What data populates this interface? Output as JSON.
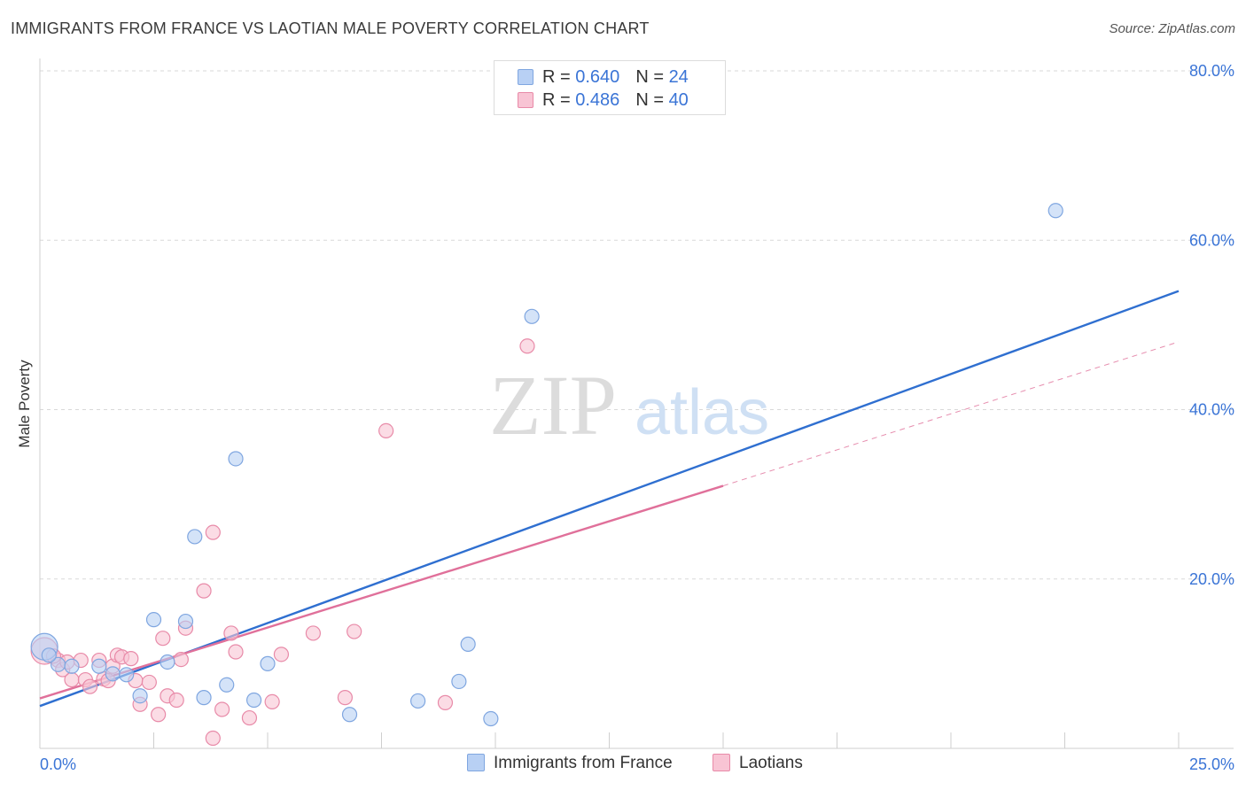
{
  "title": "IMMIGRANTS FROM FRANCE VS LAOTIAN MALE POVERTY CORRELATION CHART",
  "source": "Source: ZipAtlas.com",
  "watermark": {
    "zip": "ZIP",
    "atlas": "atlas"
  },
  "legend_top": {
    "rows": [
      {
        "r_label": "R =",
        "r_value": "0.640",
        "n_label": "N =",
        "n_value": "24"
      },
      {
        "r_label": "R =",
        "r_value": "0.486",
        "n_label": "N =",
        "n_value": "40"
      }
    ]
  },
  "colors": {
    "blue_fill": "#b8d0f4",
    "blue_stroke": "#7fa6e0",
    "blue_line": "#2f6fd0",
    "pink_fill": "#f8c4d4",
    "pink_stroke": "#e88aa8",
    "pink_line": "#e0709a",
    "axis_label": "#3a74d6",
    "grid": "#d9d9d9"
  },
  "chart_data": {
    "type": "scatter",
    "title": "IMMIGRANTS FROM FRANCE VS LAOTIAN MALE POVERTY CORRELATION CHART",
    "xlabel": "",
    "ylabel": "Male Poverty",
    "xlim": [
      0,
      25
    ],
    "ylim": [
      0,
      80
    ],
    "x_tick_labels": [
      "0.0%",
      "25.0%"
    ],
    "y_ticks": [
      20,
      40,
      60,
      80
    ],
    "y_tick_labels": [
      "20.0%",
      "40.0%",
      "60.0%",
      "80.0%"
    ],
    "grid": true,
    "legend_position": "bottom",
    "series": [
      {
        "name": "Immigrants from France",
        "color": "#b8d0f4",
        "r": 0.64,
        "n": 24,
        "points": [
          [
            0.1,
            12.0
          ],
          [
            0.4,
            9.9
          ],
          [
            0.7,
            9.7
          ],
          [
            1.3,
            9.7
          ],
          [
            1.6,
            8.8
          ],
          [
            1.9,
            8.7
          ],
          [
            2.2,
            6.2
          ],
          [
            2.5,
            15.2
          ],
          [
            2.8,
            10.2
          ],
          [
            3.2,
            15.0
          ],
          [
            3.4,
            25.0
          ],
          [
            3.6,
            6.0
          ],
          [
            4.1,
            7.5
          ],
          [
            4.3,
            34.2
          ],
          [
            4.7,
            5.7
          ],
          [
            5.0,
            10.0
          ],
          [
            6.8,
            4.0
          ],
          [
            8.3,
            5.6
          ],
          [
            9.2,
            7.9
          ],
          [
            9.4,
            12.3
          ],
          [
            9.9,
            3.5
          ],
          [
            10.8,
            51.0
          ],
          [
            22.3,
            63.5
          ],
          [
            0.2,
            11.0
          ]
        ],
        "trend": {
          "x": [
            0,
            25
          ],
          "y": [
            5.0,
            54.0
          ],
          "style": "solid"
        }
      },
      {
        "name": "Laotians",
        "color": "#f8c4d4",
        "r": 0.486,
        "n": 40,
        "points": [
          [
            0.1,
            11.5
          ],
          [
            0.4,
            10.4
          ],
          [
            0.5,
            9.3
          ],
          [
            0.6,
            10.2
          ],
          [
            0.7,
            8.1
          ],
          [
            0.9,
            10.4
          ],
          [
            1.0,
            8.1
          ],
          [
            1.1,
            7.3
          ],
          [
            1.3,
            10.4
          ],
          [
            1.4,
            8.2
          ],
          [
            1.5,
            8.0
          ],
          [
            1.6,
            9.7
          ],
          [
            1.7,
            11.0
          ],
          [
            1.8,
            10.8
          ],
          [
            2.0,
            10.6
          ],
          [
            2.1,
            8.0
          ],
          [
            2.2,
            5.2
          ],
          [
            2.4,
            7.8
          ],
          [
            2.6,
            4.0
          ],
          [
            2.7,
            13.0
          ],
          [
            2.8,
            6.2
          ],
          [
            3.0,
            5.7
          ],
          [
            3.1,
            10.5
          ],
          [
            3.2,
            14.2
          ],
          [
            3.6,
            18.6
          ],
          [
            3.8,
            25.5
          ],
          [
            3.8,
            1.2
          ],
          [
            4.0,
            4.6
          ],
          [
            4.2,
            13.6
          ],
          [
            4.3,
            11.4
          ],
          [
            4.6,
            3.6
          ],
          [
            5.1,
            5.5
          ],
          [
            5.3,
            11.1
          ],
          [
            6.0,
            13.6
          ],
          [
            6.7,
            6.0
          ],
          [
            6.9,
            13.8
          ],
          [
            7.6,
            37.5
          ],
          [
            8.9,
            5.4
          ],
          [
            10.7,
            47.5
          ],
          [
            0.3,
            10.9
          ]
        ],
        "trend": {
          "x": [
            0,
            15
          ],
          "y": [
            5.9,
            31.0
          ],
          "style": "solid",
          "extension": {
            "x": [
              15,
              25
            ],
            "y": [
              31.0,
              48.0
            ],
            "style": "dashed"
          }
        }
      }
    ]
  }
}
